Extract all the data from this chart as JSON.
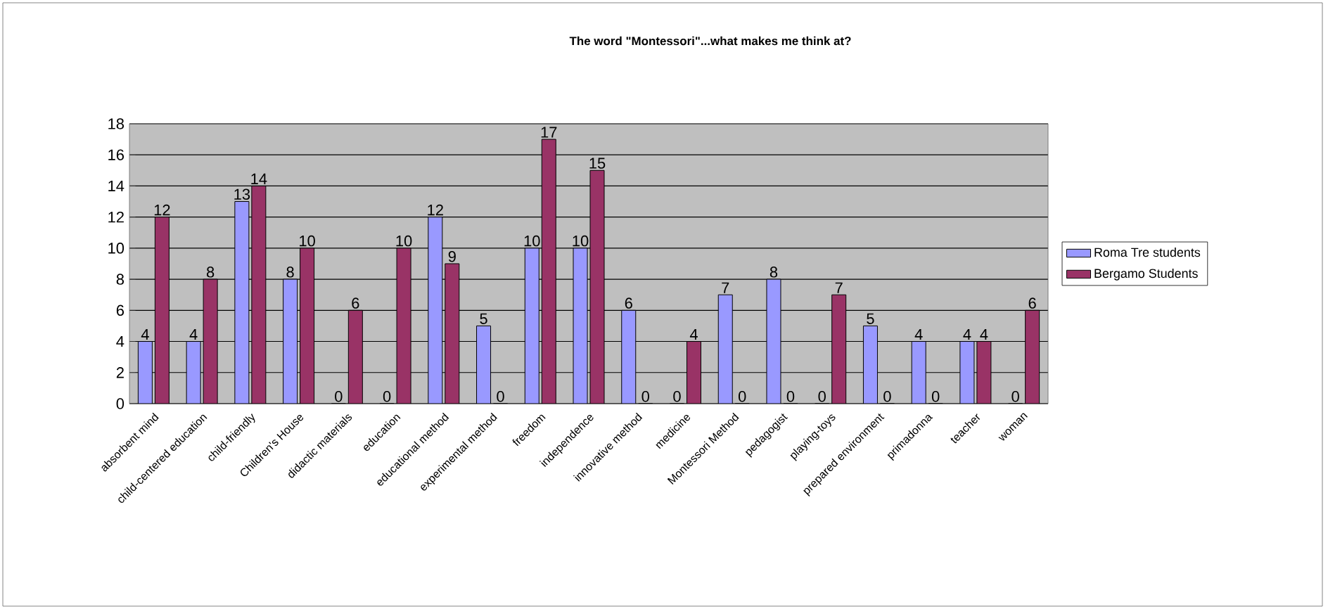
{
  "chart_data": {
    "type": "bar",
    "title": "The word \"Montessori\"...what makes me think at?",
    "categories": [
      "absorbent mind",
      "child-centered education",
      "child-friendly",
      "Children's House",
      "didactic materials",
      "education",
      "educational method",
      "experimental method",
      "freedom",
      "independence",
      "innovative method",
      "medicine",
      "Montessori Method",
      "pedagogist",
      "playing-toys",
      "prepared environment",
      "primadonna",
      "teacher",
      "woman"
    ],
    "series": [
      {
        "name": "Roma Tre students",
        "color": "#9999ff",
        "values": [
          4,
          4,
          13,
          8,
          0,
          0,
          12,
          5,
          10,
          10,
          6,
          0,
          7,
          8,
          0,
          5,
          4,
          4,
          0
        ]
      },
      {
        "name": "Bergamo Students",
        "color": "#993366",
        "values": [
          12,
          8,
          14,
          10,
          6,
          10,
          9,
          0,
          17,
          15,
          0,
          4,
          0,
          0,
          7,
          0,
          0,
          4,
          6
        ]
      }
    ],
    "ylim": [
      0,
      18
    ],
    "yticks": [
      0,
      2,
      4,
      6,
      8,
      10,
      12,
      14,
      16,
      18
    ],
    "grid": "y",
    "legend": "right",
    "data_labels": true
  }
}
